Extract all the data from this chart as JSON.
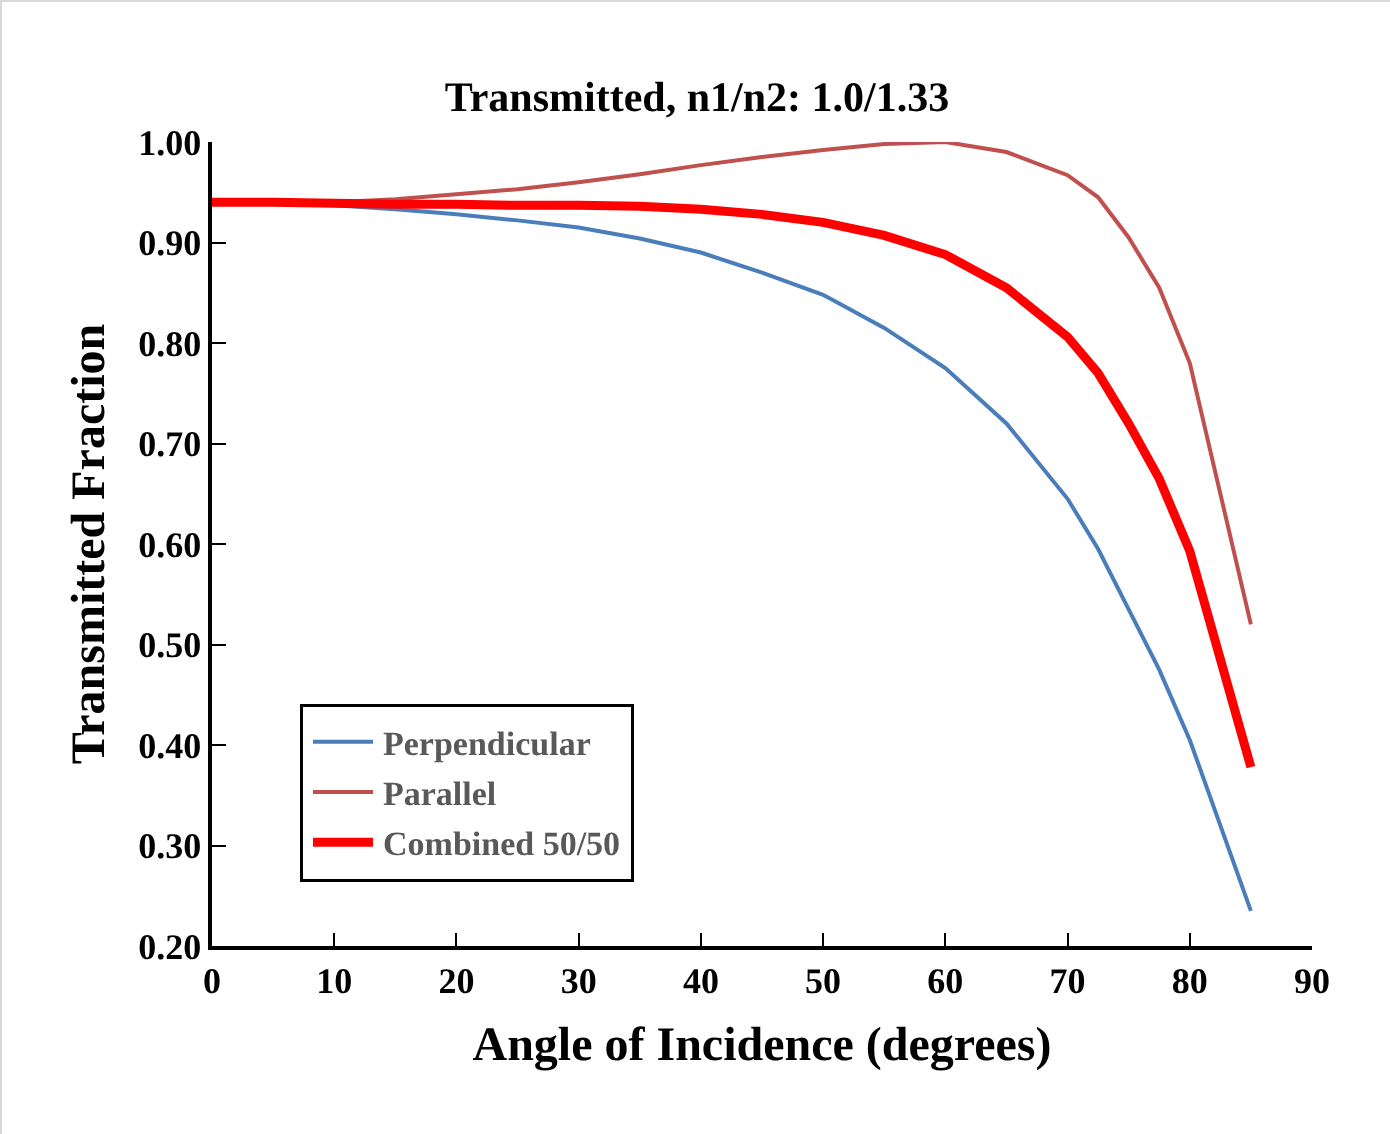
{
  "chart_data": {
    "type": "line",
    "title": "Transmitted, n1/n2: 1.0/1.33",
    "xlabel": "Angle of Incidence (degrees)",
    "ylabel": "Transmitted Fraction",
    "x": [
      0,
      5,
      10,
      15,
      20,
      25,
      30,
      35,
      40,
      45,
      50,
      55,
      60,
      65,
      70,
      72.5,
      75,
      77.5,
      80,
      85
    ],
    "series": [
      {
        "name": "Perpendicular",
        "color": "#4a7ebb",
        "values": [
          0.94,
          0.939,
          0.937,
          0.933,
          0.928,
          0.922,
          0.915,
          0.904,
          0.89,
          0.87,
          0.848,
          0.815,
          0.775,
          0.72,
          0.645,
          0.595,
          0.535,
          0.475,
          0.405,
          0.235
        ]
      },
      {
        "name": "Parallel",
        "color": "#c0504d",
        "values": [
          0.94,
          0.94,
          0.94,
          0.943,
          0.948,
          0.953,
          0.96,
          0.968,
          0.977,
          0.985,
          0.992,
          0.998,
          1.0,
          0.99,
          0.967,
          0.945,
          0.905,
          0.855,
          0.78,
          0.52
        ]
      },
      {
        "name": "Combined 50/50",
        "color": "#ff0000",
        "values": [
          0.94,
          0.94,
          0.939,
          0.938,
          0.938,
          0.937,
          0.937,
          0.936,
          0.933,
          0.928,
          0.92,
          0.907,
          0.888,
          0.855,
          0.806,
          0.77,
          0.72,
          0.665,
          0.593,
          0.378
        ]
      }
    ],
    "xlim": [
      0,
      90
    ],
    "xticks": [
      0,
      10,
      20,
      30,
      40,
      50,
      60,
      70,
      80,
      90
    ],
    "ylim": [
      0.2,
      1.0
    ],
    "yticks": [
      {
        "value": 0.2,
        "label": "0.20"
      },
      {
        "value": 0.3,
        "label": "0.30"
      },
      {
        "value": 0.4,
        "label": "0.40"
      },
      {
        "value": 0.5,
        "label": "0.50"
      },
      {
        "value": 0.6,
        "label": "0.60"
      },
      {
        "value": 0.7,
        "label": "0.70"
      },
      {
        "value": 0.8,
        "label": "0.80"
      },
      {
        "value": 0.9,
        "label": "0.90"
      },
      {
        "value": 1.0,
        "label": "1.00"
      }
    ],
    "grid": false,
    "legend": "bottom left",
    "marker": "none",
    "line_style": "solid"
  }
}
